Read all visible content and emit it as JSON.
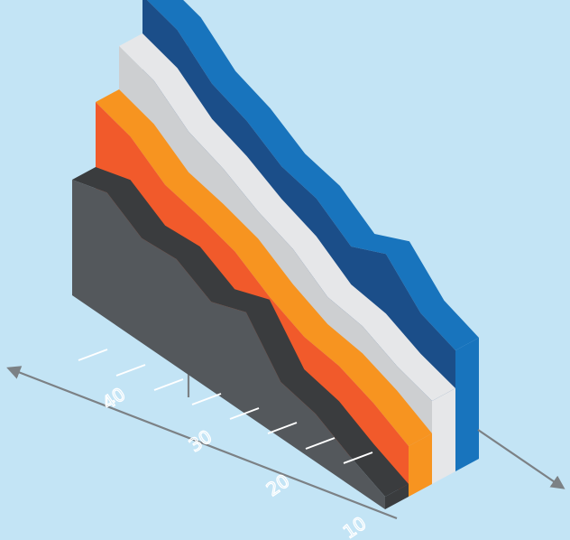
{
  "chart_data": {
    "type": "area",
    "style": "isometric-3d-stacked-ridges",
    "title": "",
    "xlabel": "",
    "ylabel": "",
    "x_ticks": [
      "40",
      "30",
      "20",
      "10"
    ],
    "grid": false,
    "legend": "none",
    "series": [
      {
        "color": "#1874bd",
        "side_color": "#1b4e89",
        "values": [
          92,
          88,
          77,
          72,
          64,
          61,
          52,
          58,
          45,
          40
        ]
      },
      {
        "color": "#e6e7e9",
        "side_color": "#cdcfd1",
        "values": [
          78,
          74,
          64,
          59,
          52,
          47,
          38,
          36,
          30,
          26
        ]
      },
      {
        "color": "#f79420",
        "side_color": "#f15a2b",
        "values": [
          62,
          58,
          49,
          46,
          42,
          34,
          28,
          26,
          21,
          14
        ]
      },
      {
        "color": "#3a3c3e",
        "side_color": "#54585c",
        "values": [
          38,
          42,
          34,
          35,
          28,
          33,
          16,
          13,
          6,
          0
        ]
      }
    ]
  }
}
